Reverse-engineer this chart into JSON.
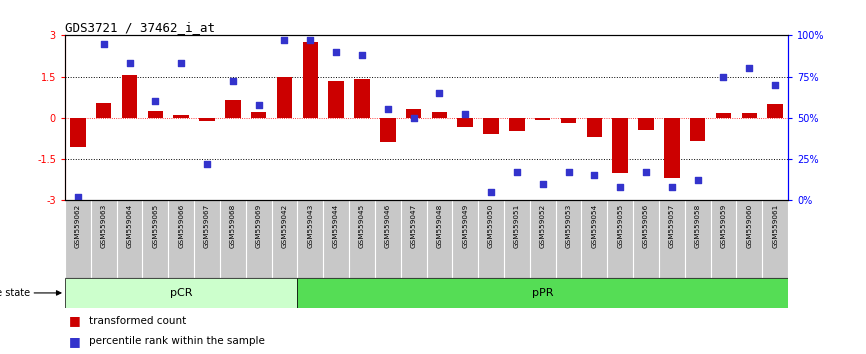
{
  "title": "GDS3721 / 37462_i_at",
  "samples": [
    "GSM559062",
    "GSM559063",
    "GSM559064",
    "GSM559065",
    "GSM559066",
    "GSM559067",
    "GSM559068",
    "GSM559069",
    "GSM559042",
    "GSM559043",
    "GSM559044",
    "GSM559045",
    "GSM559046",
    "GSM559047",
    "GSM559048",
    "GSM559049",
    "GSM559050",
    "GSM559051",
    "GSM559052",
    "GSM559053",
    "GSM559054",
    "GSM559055",
    "GSM559056",
    "GSM559057",
    "GSM559058",
    "GSM559059",
    "GSM559060",
    "GSM559061"
  ],
  "bar_values": [
    -1.05,
    0.55,
    1.55,
    0.25,
    0.1,
    -0.12,
    0.65,
    0.2,
    1.5,
    2.75,
    1.35,
    1.4,
    -0.9,
    0.3,
    0.22,
    -0.35,
    -0.6,
    -0.5,
    -0.08,
    -0.2,
    -0.7,
    -2.0,
    -0.45,
    -2.2,
    -0.85,
    0.18,
    0.18,
    0.5
  ],
  "percentile_values": [
    2,
    95,
    83,
    60,
    83,
    22,
    72,
    58,
    97,
    97,
    90,
    88,
    55,
    50,
    65,
    52,
    5,
    17,
    10,
    17,
    15,
    8,
    17,
    8,
    12,
    75,
    80,
    70
  ],
  "pCR_count": 9,
  "pPR_count": 19,
  "bar_color": "#CC0000",
  "dot_color": "#3333CC",
  "pCR_color": "#CCFFCC",
  "pPR_color": "#55DD55",
  "ylim": [
    -3,
    3
  ],
  "right_ticks": [
    0,
    25,
    50,
    75,
    100
  ],
  "right_tick_labels": [
    "0%",
    "25%",
    "50%",
    "75%",
    "100%"
  ],
  "left_ticks": [
    -3,
    -1.5,
    0,
    1.5,
    3
  ],
  "left_tick_labels": [
    "-3",
    "-1.5",
    "0",
    "1.5",
    "3"
  ]
}
